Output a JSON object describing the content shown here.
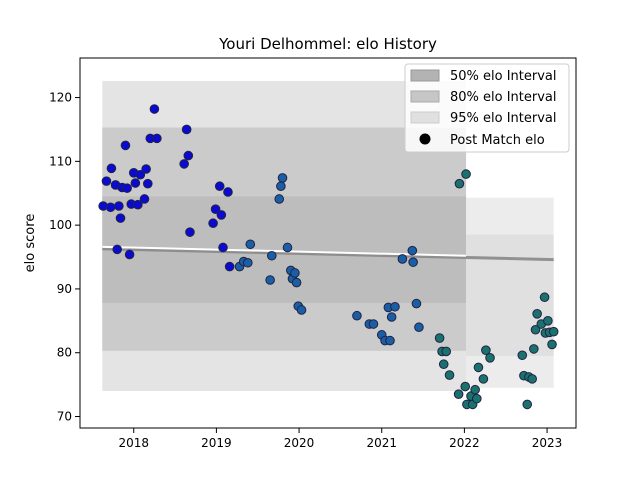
{
  "chart_data": {
    "type": "scatter",
    "title": "Youri Delhommel: elo History",
    "xlabel": "",
    "ylabel": "elo score",
    "xlim": [
      2017.35,
      2023.35
    ],
    "ylim": [
      68.2,
      126.2
    ],
    "x_ticks": [
      2018,
      2019,
      2020,
      2021,
      2022,
      2023
    ],
    "y_ticks": [
      70,
      80,
      90,
      100,
      110,
      120
    ],
    "legend_position": "top-right",
    "grid": false,
    "colors": {
      "band95": "#e4e4e4",
      "band80": "#cbcbcb",
      "band50": "#bdbdbd",
      "legend50": "#b3b3b3",
      "legend80": "#c6c6c6",
      "legend95": "#e0e0e0",
      "median_line": "#888888",
      "point_edge": "#222244"
    },
    "legend": [
      {
        "label": "50% elo Interval",
        "kind": "band50"
      },
      {
        "label": "80% elo Interval",
        "kind": "band80"
      },
      {
        "label": "95% elo Interval",
        "kind": "band95"
      },
      {
        "label": "Post Match elo",
        "kind": "point"
      }
    ],
    "intervals": {
      "x_range": [
        2017.62,
        2022.02
      ],
      "band95": [
        74.0,
        122.6
      ],
      "band80": [
        80.3,
        115.3
      ],
      "band50": [
        87.8,
        104.5
      ],
      "median": [
        96.3,
        94.6
      ]
    },
    "tail_band": {
      "x_range": [
        2022.02,
        2023.08
      ],
      "band95": [
        74.5,
        104.3
      ],
      "band80": [
        79.5,
        98.5
      ]
    },
    "series": [
      {
        "color": "#0a0ad2",
        "points": [
          [
            2017.63,
            103
          ],
          [
            2017.67,
            106.9
          ],
          [
            2017.72,
            102.8
          ],
          [
            2017.73,
            108.9
          ],
          [
            2017.78,
            106.3
          ],
          [
            2017.8,
            96.2
          ],
          [
            2017.82,
            103
          ],
          [
            2017.84,
            101.1
          ],
          [
            2017.86,
            105.9
          ],
          [
            2017.9,
            112.5
          ],
          [
            2017.92,
            105.8
          ],
          [
            2017.95,
            95.4
          ],
          [
            2017.97,
            103.3
          ],
          [
            2018.0,
            108.2
          ],
          [
            2018.02,
            106.6
          ],
          [
            2018.05,
            103.2
          ],
          [
            2018.08,
            107.9
          ],
          [
            2018.13,
            104.1
          ],
          [
            2018.15,
            108.8
          ],
          [
            2018.17,
            106.5
          ],
          [
            2018.2,
            113.6
          ],
          [
            2018.25,
            118.2
          ],
          [
            2018.28,
            113.6
          ],
          [
            2018.61,
            109.6
          ],
          [
            2018.64,
            115
          ],
          [
            2018.66,
            110.9
          ],
          [
            2018.68,
            98.9
          ],
          [
            2018.96,
            100.3
          ],
          [
            2018.99,
            102.5
          ],
          [
            2019.04,
            106.1
          ],
          [
            2019.06,
            101.6
          ],
          [
            2019.08,
            96.5
          ],
          [
            2019.14,
            105.2
          ],
          [
            2019.16,
            93.5
          ]
        ]
      },
      {
        "color": "#1a5fa6",
        "points": [
          [
            2019.28,
            93.5
          ],
          [
            2019.33,
            94.3
          ],
          [
            2019.38,
            94.1
          ],
          [
            2019.41,
            97
          ],
          [
            2019.65,
            91.4
          ],
          [
            2019.67,
            95.2
          ],
          [
            2019.76,
            104.1
          ],
          [
            2019.78,
            106.1
          ],
          [
            2019.8,
            107.4
          ],
          [
            2019.86,
            96.5
          ],
          [
            2019.9,
            92.9
          ],
          [
            2019.92,
            91.6
          ],
          [
            2019.95,
            92.5
          ],
          [
            2019.97,
            91
          ],
          [
            2019.99,
            87.3
          ],
          [
            2020.03,
            86.7
          ],
          [
            2020.7,
            85.8
          ],
          [
            2020.85,
            84.5
          ],
          [
            2020.9,
            84.5
          ],
          [
            2021.0,
            82.8
          ],
          [
            2021.04,
            81.9
          ],
          [
            2021.08,
            87.1
          ],
          [
            2021.1,
            81.9
          ],
          [
            2021.12,
            85.6
          ],
          [
            2021.16,
            87.2
          ],
          [
            2021.25,
            94.7
          ],
          [
            2021.37,
            96
          ],
          [
            2021.38,
            94.2
          ],
          [
            2021.42,
            87.7
          ],
          [
            2021.45,
            84
          ]
        ]
      },
      {
        "color": "#19726d",
        "points": [
          [
            2021.94,
            106.5
          ],
          [
            2022.02,
            108
          ],
          [
            2021.7,
            82.3
          ],
          [
            2021.73,
            80.2
          ],
          [
            2021.75,
            78.2
          ],
          [
            2021.78,
            80.2
          ],
          [
            2021.82,
            76.5
          ],
          [
            2021.93,
            73.5
          ],
          [
            2022.01,
            74.7
          ],
          [
            2022.03,
            71.9
          ],
          [
            2022.08,
            73.2
          ],
          [
            2022.1,
            71.9
          ],
          [
            2022.13,
            74.2
          ],
          [
            2022.15,
            72.8
          ],
          [
            2022.17,
            77.7
          ],
          [
            2022.23,
            75.9
          ],
          [
            2022.26,
            80.4
          ],
          [
            2022.31,
            79.2
          ],
          [
            2022.7,
            79.6
          ],
          [
            2022.72,
            76.4
          ],
          [
            2022.76,
            71.9
          ],
          [
            2022.78,
            76.2
          ],
          [
            2022.82,
            75.9
          ],
          [
            2022.84,
            80.6
          ],
          [
            2022.86,
            83.6
          ],
          [
            2022.88,
            86.1
          ],
          [
            2022.93,
            84.5
          ],
          [
            2022.97,
            88.7
          ],
          [
            2022.98,
            83.1
          ],
          [
            2023.03,
            83.2
          ],
          [
            2023.06,
            81.3
          ],
          [
            2023.08,
            83.3
          ],
          [
            2023.01,
            85
          ]
        ]
      }
    ]
  }
}
